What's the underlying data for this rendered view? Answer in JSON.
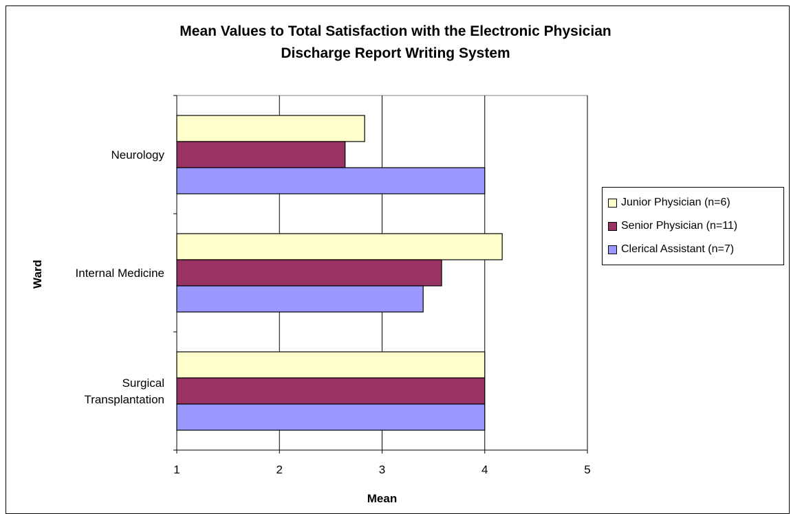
{
  "chart_data": {
    "type": "bar",
    "orientation": "horizontal",
    "title": "Mean Values to Total Satisfaction with the Electronic Physician\nDischarge Report Writing System",
    "xlabel": "Mean",
    "ylabel": "Ward",
    "xlim": [
      1,
      5
    ],
    "xticks": [
      "1",
      "2",
      "3",
      "4",
      "5"
    ],
    "grid": "vertical",
    "legend_position": "right",
    "categories": [
      "Neurology",
      "Internal Medicine",
      "Surgical\nTransplantation"
    ],
    "series": [
      {
        "name": "Junior Physician (n=6)",
        "color": "#ffffcc",
        "values": [
          2.83,
          4.17,
          4.0
        ]
      },
      {
        "name": "Senior Physician (n=11)",
        "color": "#993366",
        "values": [
          2.64,
          3.58,
          4.0
        ]
      },
      {
        "name": "Clerical Assistant (n=7)",
        "color": "#9999ff",
        "values": [
          4.0,
          3.4,
          4.0
        ]
      }
    ]
  }
}
